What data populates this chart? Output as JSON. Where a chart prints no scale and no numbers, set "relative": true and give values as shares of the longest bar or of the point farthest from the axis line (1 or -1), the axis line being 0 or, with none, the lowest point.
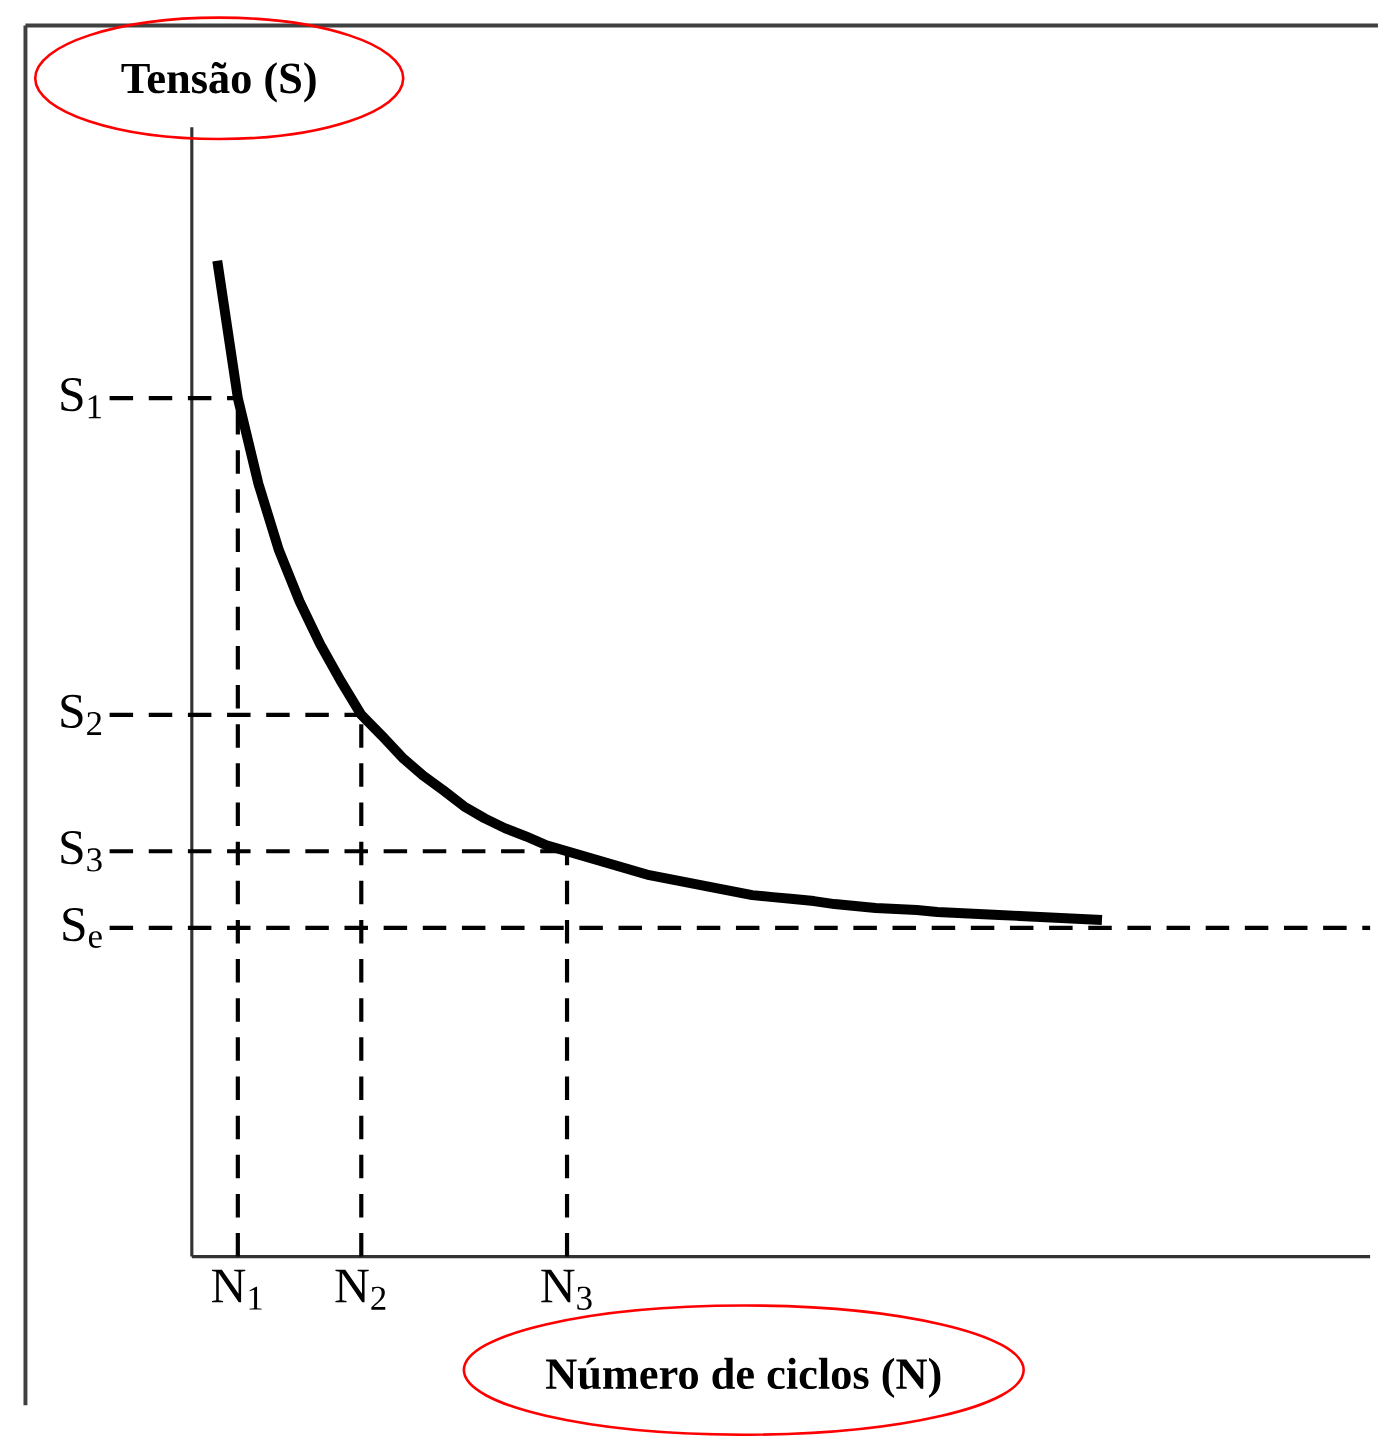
{
  "chart_data": {
    "type": "line",
    "relative": true,
    "xlabel": "Número de ciclos (N)",
    "ylabel": "Tensão (S)",
    "categories": [
      null,
      "N$_{1}$",
      null,
      null,
      null,
      null,
      null,
      "N$_{2}$",
      null,
      null,
      null,
      null,
      null,
      null,
      null,
      null,
      null,
      "N$_{3}$",
      null,
      null,
      null,
      null,
      null,
      null,
      null,
      null,
      null,
      null,
      null,
      null,
      null,
      null,
      null,
      null,
      null,
      null,
      null,
      null,
      null,
      null,
      null,
      null,
      null,
      null
    ],
    "series": [
      {
        "color": "#000000",
        "line_style": "solid",
        "values": [
          1.0,
          0.862,
          0.776,
          0.709,
          0.658,
          0.615,
          0.578,
          0.544,
          0.523,
          0.501,
          0.483,
          0.468,
          0.452,
          0.44,
          0.43,
          0.422,
          0.413,
          0.407,
          0.401,
          0.395,
          0.389,
          0.383,
          0.379,
          0.375,
          0.371,
          0.367,
          0.363,
          0.361,
          0.359,
          0.357,
          0.354,
          0.352,
          0.35,
          0.349,
          0.348,
          0.346,
          0.345,
          0.344,
          0.343,
          0.342,
          0.341,
          0.34,
          0.339,
          0.338
        ]
      }
    ],
    "ref_lines": [
      {
        "axis": "y",
        "value": 0.862,
        "label": "S$_{1}$",
        "line_style": "dashed"
      },
      {
        "axis": "y",
        "value": 0.544,
        "label": "S$_{2}$",
        "line_style": "dashed"
      },
      {
        "axis": "y",
        "value": 0.407,
        "label": "S$_{3}$",
        "line_style": "dashed"
      },
      {
        "axis": "y",
        "value": 0.33,
        "label": "S$_{e}$",
        "line_style": "dashed"
      },
      {
        "axis": "x",
        "value": "N$_{1}$",
        "line_style": "dashed"
      },
      {
        "axis": "x",
        "value": "N$_{2}$",
        "line_style": "dashed"
      },
      {
        "axis": "x",
        "value": "N$_{3}$",
        "line_style": "dashed"
      }
    ],
    "marker": "none",
    "grid": false
  }
}
